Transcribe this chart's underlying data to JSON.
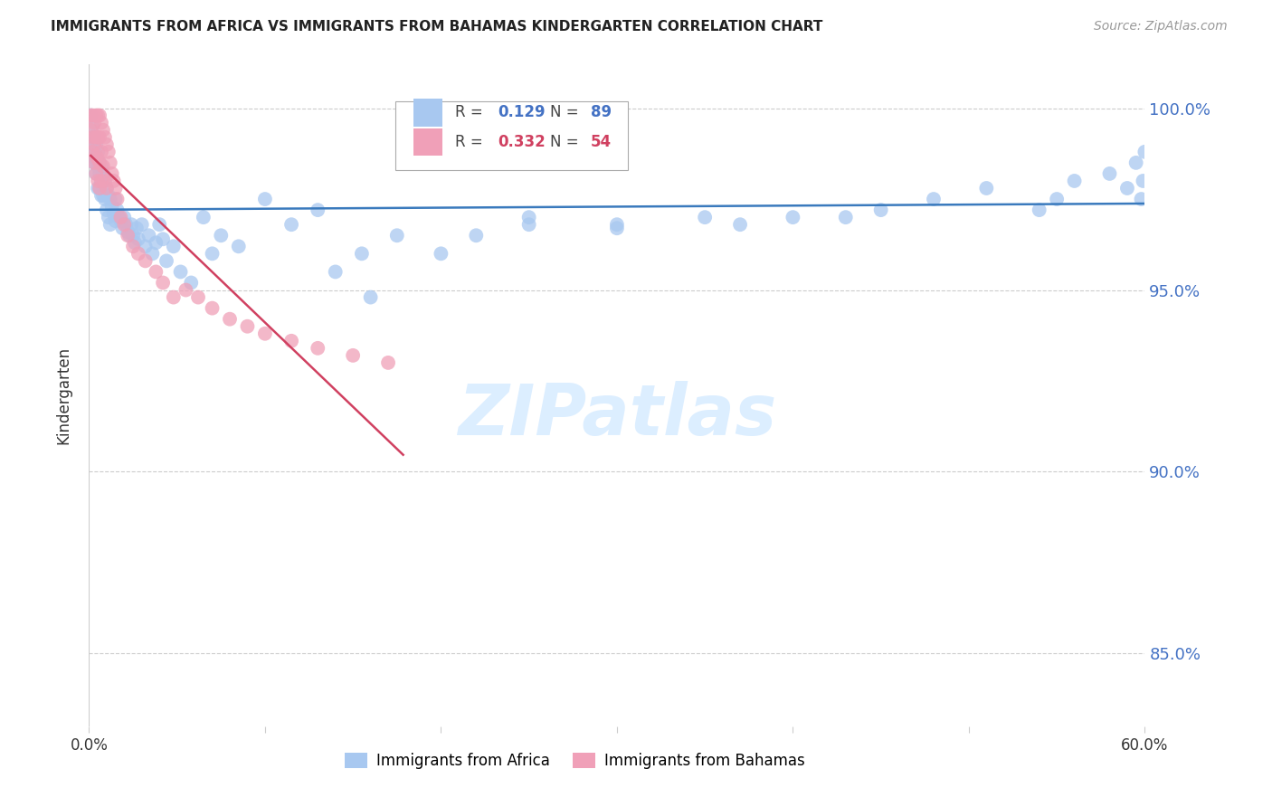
{
  "title": "IMMIGRANTS FROM AFRICA VS IMMIGRANTS FROM BAHAMAS KINDERGARTEN CORRELATION CHART",
  "source": "Source: ZipAtlas.com",
  "ylabel": "Kindergarten",
  "xlim": [
    0.0,
    0.6
  ],
  "ylim": [
    0.83,
    1.012
  ],
  "ytick_vals": [
    0.85,
    0.9,
    0.95,
    1.0
  ],
  "ytick_labels": [
    "85.0%",
    "90.0%",
    "95.0%",
    "100.0%"
  ],
  "legend_blue_R": "0.129",
  "legend_blue_N": "89",
  "legend_pink_R": "0.332",
  "legend_pink_N": "54",
  "africa_color": "#a8c8f0",
  "bahamas_color": "#f0a0b8",
  "trendline_africa_color": "#3a7abd",
  "trendline_bahamas_color": "#d04060",
  "watermark_color": "#dceeff",
  "axis_label_color": "#4472c4",
  "title_color": "#222222",
  "grid_color": "#cccccc",
  "africa_x": [
    0.001,
    0.002,
    0.002,
    0.003,
    0.003,
    0.003,
    0.004,
    0.004,
    0.004,
    0.005,
    0.005,
    0.005,
    0.006,
    0.006,
    0.006,
    0.007,
    0.007,
    0.007,
    0.008,
    0.008,
    0.009,
    0.009,
    0.01,
    0.01,
    0.011,
    0.011,
    0.012,
    0.012,
    0.013,
    0.014,
    0.015,
    0.015,
    0.016,
    0.017,
    0.018,
    0.019,
    0.02,
    0.021,
    0.022,
    0.023,
    0.024,
    0.025,
    0.026,
    0.027,
    0.028,
    0.03,
    0.032,
    0.034,
    0.036,
    0.038,
    0.04,
    0.042,
    0.044,
    0.048,
    0.052,
    0.058,
    0.065,
    0.075,
    0.085,
    0.1,
    0.115,
    0.13,
    0.155,
    0.175,
    0.2,
    0.22,
    0.25,
    0.3,
    0.35,
    0.4,
    0.45,
    0.48,
    0.51,
    0.54,
    0.56,
    0.58,
    0.59,
    0.595,
    0.598,
    0.599,
    0.6,
    0.14,
    0.16,
    0.07,
    0.25,
    0.3,
    0.37,
    0.43,
    0.55
  ],
  "africa_y": [
    0.998,
    0.995,
    0.99,
    0.992,
    0.988,
    0.985,
    0.99,
    0.986,
    0.982,
    0.988,
    0.984,
    0.978,
    0.985,
    0.982,
    0.978,
    0.984,
    0.98,
    0.976,
    0.982,
    0.976,
    0.98,
    0.975,
    0.978,
    0.972,
    0.976,
    0.97,
    0.975,
    0.968,
    0.973,
    0.971,
    0.975,
    0.969,
    0.972,
    0.97,
    0.969,
    0.967,
    0.97,
    0.968,
    0.966,
    0.965,
    0.968,
    0.965,
    0.963,
    0.967,
    0.964,
    0.968,
    0.962,
    0.965,
    0.96,
    0.963,
    0.968,
    0.964,
    0.958,
    0.962,
    0.955,
    0.952,
    0.97,
    0.965,
    0.962,
    0.975,
    0.968,
    0.972,
    0.96,
    0.965,
    0.96,
    0.965,
    0.968,
    0.968,
    0.97,
    0.97,
    0.972,
    0.975,
    0.978,
    0.972,
    0.98,
    0.982,
    0.978,
    0.985,
    0.975,
    0.98,
    0.988,
    0.955,
    0.948,
    0.96,
    0.97,
    0.967,
    0.968,
    0.97,
    0.975
  ],
  "bahamas_x": [
    0.001,
    0.001,
    0.002,
    0.002,
    0.002,
    0.003,
    0.003,
    0.003,
    0.004,
    0.004,
    0.004,
    0.004,
    0.005,
    0.005,
    0.005,
    0.005,
    0.006,
    0.006,
    0.006,
    0.006,
    0.007,
    0.007,
    0.007,
    0.008,
    0.008,
    0.009,
    0.009,
    0.01,
    0.01,
    0.011,
    0.012,
    0.013,
    0.014,
    0.015,
    0.016,
    0.018,
    0.02,
    0.022,
    0.025,
    0.028,
    0.032,
    0.038,
    0.042,
    0.048,
    0.055,
    0.062,
    0.07,
    0.08,
    0.09,
    0.1,
    0.115,
    0.13,
    0.15,
    0.17
  ],
  "bahamas_y": [
    0.998,
    0.994,
    0.998,
    0.992,
    0.988,
    0.996,
    0.99,
    0.985,
    0.998,
    0.992,
    0.987,
    0.982,
    0.998,
    0.992,
    0.986,
    0.98,
    0.998,
    0.992,
    0.985,
    0.978,
    0.996,
    0.988,
    0.98,
    0.994,
    0.984,
    0.992,
    0.98,
    0.99,
    0.978,
    0.988,
    0.985,
    0.982,
    0.98,
    0.978,
    0.975,
    0.97,
    0.968,
    0.965,
    0.962,
    0.96,
    0.958,
    0.955,
    0.952,
    0.948,
    0.95,
    0.948,
    0.945,
    0.942,
    0.94,
    0.938,
    0.936,
    0.934,
    0.932,
    0.93
  ]
}
